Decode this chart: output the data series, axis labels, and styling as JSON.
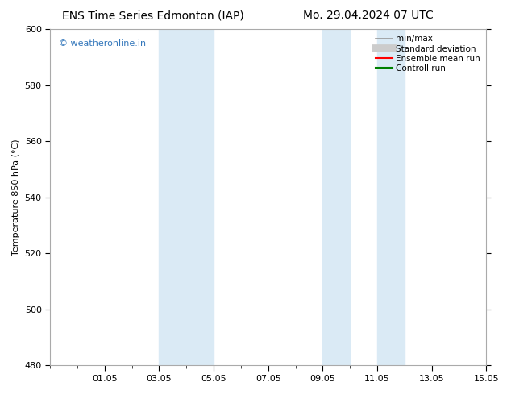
{
  "title_left": "ENS Time Series Edmonton (IAP)",
  "title_right": "Mo. 29.04.2024 07 UTC",
  "ylabel": "Temperature 850 hPa (°C)",
  "watermark": "© weatheronline.in",
  "xlim": [
    0,
    16
  ],
  "xtick_positions": [
    2,
    4,
    6,
    8,
    10,
    12,
    14,
    16
  ],
  "xtick_labels": [
    "01.05",
    "03.05",
    "05.05",
    "07.05",
    "09.05",
    "11.05",
    "13.05",
    "15.05"
  ],
  "ylim": [
    480,
    600
  ],
  "ytick_positions": [
    480,
    500,
    520,
    540,
    560,
    580,
    600
  ],
  "ytick_labels": [
    "480",
    "500",
    "520",
    "540",
    "560",
    "580",
    "600"
  ],
  "shaded_bands": [
    {
      "xmin": 4.0,
      "xmax": 5.0,
      "color": "#daeaf5"
    },
    {
      "xmin": 5.0,
      "xmax": 6.0,
      "color": "#daeaf5"
    },
    {
      "xmin": 10.0,
      "xmax": 11.0,
      "color": "#daeaf5"
    },
    {
      "xmin": 12.0,
      "xmax": 13.0,
      "color": "#daeaf5"
    }
  ],
  "legend_items": [
    {
      "label": "min/max",
      "color": "#999999",
      "lw": 1.2,
      "style": "solid",
      "type": "line"
    },
    {
      "label": "Standard deviation",
      "color": "#cccccc",
      "lw": 7,
      "style": "solid",
      "type": "line"
    },
    {
      "label": "Ensemble mean run",
      "color": "#ff0000",
      "lw": 1.5,
      "style": "solid",
      "type": "line"
    },
    {
      "label": "Controll run",
      "color": "#008000",
      "lw": 1.5,
      "style": "solid",
      "type": "line"
    }
  ],
  "background_color": "#ffffff",
  "plot_bg_color": "#ffffff",
  "border_color": "#aaaaaa",
  "title_fontsize": 10,
  "label_fontsize": 8,
  "tick_fontsize": 8,
  "watermark_color": "#3377bb",
  "watermark_fontsize": 8
}
